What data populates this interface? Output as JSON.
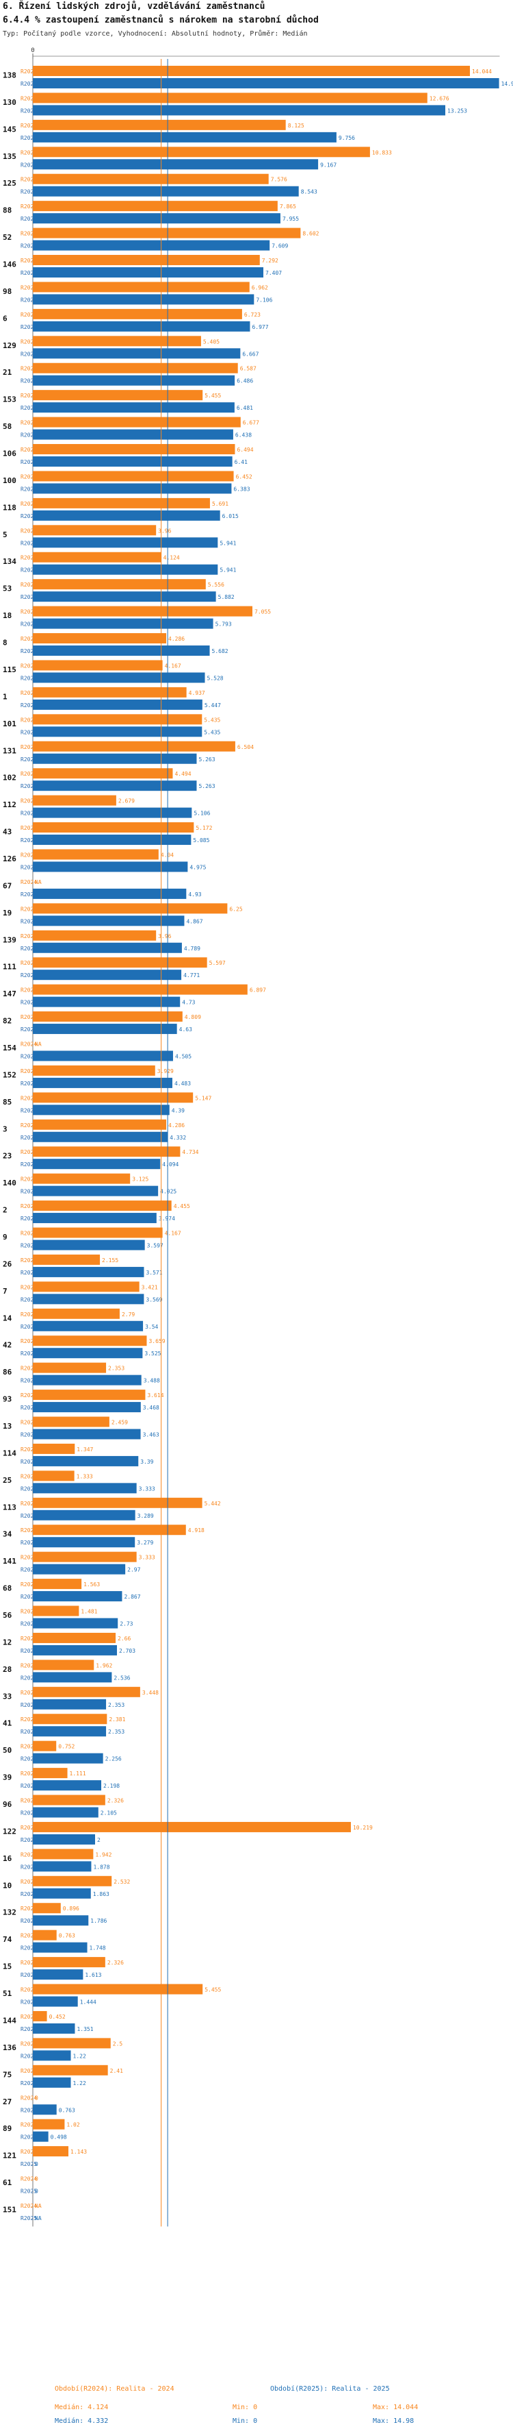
{
  "header": {
    "title": "6. Řízení lidských zdrojů, vzdělávání zaměstnanců",
    "subtitle": "6.4.4 % zastoupení zaměstnanců s nárokem na starobní důchod",
    "note": "Typ: Počítaný podle vzorce, Vyhodnocení: Absolutní hodnoty, Průměr: Medián"
  },
  "colors": {
    "r2024": "#f7861e",
    "r2025": "#1f6fb5",
    "label": "#2a6bb0"
  },
  "footer": {
    "legend_2024": "Období(R2024): Realita - 2024",
    "legend_2025": "Období(R2025): Realita - 2025",
    "median_2024": "Medián: 4.124",
    "median_2025": "Medián: 4.332",
    "min_2024": "Min: 0",
    "min_2025": "Min: 0",
    "max_2024": "Max: 14.044",
    "max_2025": "Max: 14.98"
  },
  "chart_data": {
    "type": "bar",
    "orientation": "horizontal",
    "xlim": [
      0,
      15
    ],
    "median_2024": 4.124,
    "median_2025": 4.332,
    "series_names": [
      "R2024",
      "R2025"
    ],
    "groups": [
      {
        "id": "138",
        "r2024": 14.044,
        "r2025": 14.98
      },
      {
        "id": "130",
        "r2024": 12.676,
        "r2025": 13.253
      },
      {
        "id": "145",
        "r2024": 8.125,
        "r2025": 9.756
      },
      {
        "id": "135",
        "r2024": 10.833,
        "r2025": 9.167
      },
      {
        "id": "125",
        "r2024": 7.576,
        "r2025": 8.543
      },
      {
        "id": "88",
        "r2024": 7.865,
        "r2025": 7.955
      },
      {
        "id": "52",
        "r2024": 8.602,
        "r2025": 7.609
      },
      {
        "id": "146",
        "r2024": 7.292,
        "r2025": 7.407
      },
      {
        "id": "98",
        "r2024": 6.962,
        "r2025": 7.106
      },
      {
        "id": "6",
        "r2024": 6.723,
        "r2025": 6.977
      },
      {
        "id": "129",
        "r2024": 5.405,
        "r2025": 6.667
      },
      {
        "id": "21",
        "r2024": 6.587,
        "r2025": 6.486
      },
      {
        "id": "153",
        "r2024": 5.455,
        "r2025": 6.481
      },
      {
        "id": "58",
        "r2024": 6.677,
        "r2025": 6.438
      },
      {
        "id": "106",
        "r2024": 6.494,
        "r2025": 6.41
      },
      {
        "id": "100",
        "r2024": 6.452,
        "r2025": 6.383
      },
      {
        "id": "118",
        "r2024": 5.691,
        "r2025": 6.015
      },
      {
        "id": "5",
        "r2024": 3.96,
        "r2025": 5.941
      },
      {
        "id": "134",
        "r2024": 4.124,
        "r2025": 5.941
      },
      {
        "id": "53",
        "r2024": 5.556,
        "r2025": 5.882
      },
      {
        "id": "18",
        "r2024": 7.055,
        "r2025": 5.793
      },
      {
        "id": "8",
        "r2024": 4.286,
        "r2025": 5.682
      },
      {
        "id": "115",
        "r2024": 4.167,
        "r2025": 5.528
      },
      {
        "id": "1",
        "r2024": 4.937,
        "r2025": 5.447
      },
      {
        "id": "101",
        "r2024": 5.435,
        "r2025": 5.435
      },
      {
        "id": "131",
        "r2024": 6.504,
        "r2025": 5.263
      },
      {
        "id": "102",
        "r2024": 4.494,
        "r2025": 5.263
      },
      {
        "id": "112",
        "r2024": 2.679,
        "r2025": 5.106
      },
      {
        "id": "43",
        "r2024": 5.172,
        "r2025": 5.085
      },
      {
        "id": "126",
        "r2024": 4.04,
        "r2025": 4.975
      },
      {
        "id": "67",
        "r2024": "NA",
        "r2025": 4.93
      },
      {
        "id": "19",
        "r2024": 6.25,
        "r2025": 4.867
      },
      {
        "id": "139",
        "r2024": 3.96,
        "r2025": 4.789
      },
      {
        "id": "111",
        "r2024": 5.597,
        "r2025": 4.771
      },
      {
        "id": "147",
        "r2024": 6.897,
        "r2025": 4.73
      },
      {
        "id": "82",
        "r2024": 4.809,
        "r2025": 4.63
      },
      {
        "id": "154",
        "r2024": "NA",
        "r2025": 4.505
      },
      {
        "id": "152",
        "r2024": 3.929,
        "r2025": 4.483
      },
      {
        "id": "85",
        "r2024": 5.147,
        "r2025": 4.39
      },
      {
        "id": "3",
        "r2024": 4.286,
        "r2025": 4.332
      },
      {
        "id": "23",
        "r2024": 4.734,
        "r2025": 4.094
      },
      {
        "id": "140",
        "r2024": 3.125,
        "r2025": 4.025
      },
      {
        "id": "2",
        "r2024": 4.455,
        "r2025": 3.974
      },
      {
        "id": "9",
        "r2024": 4.167,
        "r2025": 3.597
      },
      {
        "id": "26",
        "r2024": 2.155,
        "r2025": 3.571
      },
      {
        "id": "7",
        "r2024": 3.421,
        "r2025": 3.569
      },
      {
        "id": "14",
        "r2024": 2.79,
        "r2025": 3.54
      },
      {
        "id": "42",
        "r2024": 3.659,
        "r2025": 3.525
      },
      {
        "id": "86",
        "r2024": 2.353,
        "r2025": 3.488
      },
      {
        "id": "93",
        "r2024": 3.614,
        "r2025": 3.468
      },
      {
        "id": "13",
        "r2024": 2.459,
        "r2025": 3.463
      },
      {
        "id": "114",
        "r2024": 1.347,
        "r2025": 3.39
      },
      {
        "id": "25",
        "r2024": 1.333,
        "r2025": 3.333
      },
      {
        "id": "113",
        "r2024": 5.442,
        "r2025": 3.289
      },
      {
        "id": "34",
        "r2024": 4.918,
        "r2025": 3.279
      },
      {
        "id": "141",
        "r2024": 3.333,
        "r2025": 2.97
      },
      {
        "id": "68",
        "r2024": 1.563,
        "r2025": 2.867
      },
      {
        "id": "56",
        "r2024": 1.481,
        "r2025": 2.73
      },
      {
        "id": "12",
        "r2024": 2.66,
        "r2025": 2.703
      },
      {
        "id": "28",
        "r2024": 1.962,
        "r2025": 2.536
      },
      {
        "id": "33",
        "r2024": 3.448,
        "r2025": 2.353
      },
      {
        "id": "41",
        "r2024": 2.381,
        "r2025": 2.353
      },
      {
        "id": "50",
        "r2024": 0.752,
        "r2025": 2.256
      },
      {
        "id": "39",
        "r2024": 1.111,
        "r2025": 2.198
      },
      {
        "id": "96",
        "r2024": 2.326,
        "r2025": 2.105
      },
      {
        "id": "122",
        "r2024": 10.219,
        "r2025": 2.0
      },
      {
        "id": "16",
        "r2024": 1.942,
        "r2025": 1.878
      },
      {
        "id": "10",
        "r2024": 2.532,
        "r2025": 1.863
      },
      {
        "id": "132",
        "r2024": 0.896,
        "r2025": 1.786
      },
      {
        "id": "74",
        "r2024": 0.763,
        "r2025": 1.748
      },
      {
        "id": "15",
        "r2024": 2.326,
        "r2025": 1.613
      },
      {
        "id": "51",
        "r2024": 5.455,
        "r2025": 1.444
      },
      {
        "id": "144",
        "r2024": 0.452,
        "r2025": 1.351
      },
      {
        "id": "136",
        "r2024": 2.5,
        "r2025": 1.22
      },
      {
        "id": "75",
        "r2024": 2.41,
        "r2025": 1.22
      },
      {
        "id": "27",
        "r2024": 0,
        "r2025": 0.763
      },
      {
        "id": "89",
        "r2024": 1.02,
        "r2025": 0.498
      },
      {
        "id": "121",
        "r2024": 1.143,
        "r2025": 0
      },
      {
        "id": "61",
        "r2024": 0,
        "r2025": 0
      },
      {
        "id": "151",
        "r2024": "NA",
        "r2025": "NA"
      }
    ]
  }
}
